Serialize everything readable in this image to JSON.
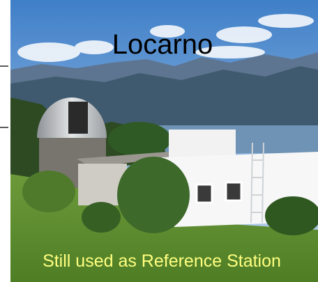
{
  "title": "Locarno",
  "caption": "Still used as Reference Station"
}
